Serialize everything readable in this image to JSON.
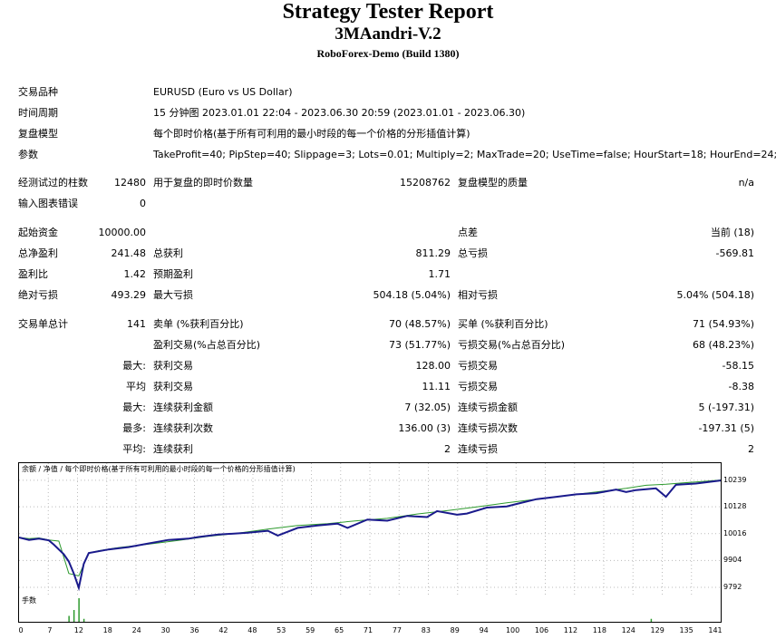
{
  "header": {
    "title": "Strategy Tester Report",
    "expert": "3MAandri-V.2",
    "server": "RoboForex-Demo (Build 1380)"
  },
  "info": [
    {
      "label": "交易品种",
      "value": "EURUSD (Euro vs US Dollar)"
    },
    {
      "label": "时间周期",
      "value": "15 分钟图 2023.01.01 22:04 - 2023.06.30 20:59 (2023.01.01 - 2023.06.30)"
    },
    {
      "label": "复盘模型",
      "value": "每个即时价格(基于所有可利用的最小时段的每一个价格的分形插值计算)"
    },
    {
      "label": "参数",
      "value": "TakeProfit=40; PipStep=40; Slippage=3; Lots=0.01; Multiply=2; MaxTrade=20; UseTime=false; HourStart=18; HourEnd=24;"
    }
  ],
  "bars": {
    "label": "经测试过的柱数",
    "value": "12480",
    "ticks_label": "用于复盘的即时价数量",
    "ticks_value": "15208762",
    "quality_label": "复盘模型的质量",
    "quality_value": "n/a",
    "errors_label": "输入图表错误",
    "errors_value": "0"
  },
  "money": {
    "deposit_label": "起始资金",
    "deposit": "10000.00",
    "spread_label": "点差",
    "spread": "当前 (18)",
    "net_label": "总净盈利",
    "net": "241.48",
    "gross_profit_label": "总获利",
    "gross_profit": "811.29",
    "gross_loss_label": "总亏损",
    "gross_loss": "-569.81",
    "pf_label": "盈利比",
    "pf": "1.42",
    "payoff_label": "预期盈利",
    "payoff": "1.71",
    "abs_dd_label": "绝对亏损",
    "abs_dd": "493.29",
    "max_dd_label": "最大亏损",
    "max_dd": "504.18 (5.04%)",
    "rel_dd_label": "相对亏损",
    "rel_dd": "5.04% (504.18)"
  },
  "trades": {
    "total_label": "交易单总计",
    "total": "141",
    "short_label": "卖单 (%获利百分比)",
    "short": "70 (48.57%)",
    "long_label": "买单 (%获利百分比)",
    "long": "71 (54.93%)",
    "profit_trades_label": "盈利交易(%占总百分比)",
    "profit_trades": "73 (51.77%)",
    "loss_trades_label": "亏损交易(%占总百分比)",
    "loss_trades": "68 (48.23%)",
    "max_prefix": "最大:",
    "largest_profit_label": "获利交易",
    "largest_profit": "128.00",
    "largest_loss_label": "亏损交易",
    "largest_loss": "-58.15",
    "avg_prefix": "平均",
    "avg_profit_label": "获利交易",
    "avg_profit": "11.11",
    "avg_loss_label": "亏损交易",
    "avg_loss": "-8.38",
    "max_prefix2": "最大:",
    "max_cons_wins_label": "连续获利金额",
    "max_cons_wins": "7 (32.05)",
    "max_cons_losses_label": "连续亏损金额",
    "max_cons_losses": "5 (-197.31)",
    "most_prefix": "最多:",
    "max_cons_profit_label": "连续获利次数",
    "max_cons_profit": "136.00 (3)",
    "max_cons_loss_label": "连续亏损次数",
    "max_cons_loss": "-197.31 (5)",
    "avg_prefix2": "平均:",
    "avg_cons_wins_label": "连续获利",
    "avg_cons_wins": "2",
    "avg_cons_losses_label": "连续亏损",
    "avg_cons_losses": "2"
  },
  "chart_caption": "余额 / 净值 / 每个即时价格(基于所有可利用的最小时段的每一个价格的分形插值计算)",
  "volume_caption": "手数",
  "colors": {
    "balance": "#1a1a8c",
    "equity": "#2e9a2e",
    "volume": "#2e9a2e"
  },
  "chart_data": {
    "type": "line",
    "ylim": [
      9792,
      10280
    ],
    "y_ticks": [
      "10239",
      "10128",
      "10016",
      "9904",
      "9792"
    ],
    "x_ticks": [
      "0",
      "7",
      "12",
      "18",
      "24",
      "30",
      "36",
      "42",
      "48",
      "53",
      "59",
      "65",
      "71",
      "77",
      "83",
      "89",
      "94",
      "100",
      "106",
      "112",
      "118",
      "124",
      "129",
      "135",
      "141"
    ],
    "series": [
      {
        "name": "余额",
        "x": [
          0,
          2,
          4,
          6,
          8,
          10,
          12,
          14,
          16,
          20,
          26,
          32,
          38,
          44,
          50,
          56,
          62,
          68,
          74,
          80,
          86,
          92,
          98,
          104,
          110,
          116,
          122,
          126,
          130,
          136,
          141
        ],
        "values": [
          10000,
          9995,
          9998,
          9990,
          9985,
          9850,
          9840,
          9935,
          9945,
          9958,
          9972,
          9988,
          10005,
          10018,
          10035,
          10050,
          10058,
          10070,
          10080,
          10098,
          10112,
          10128,
          10145,
          10160,
          10175,
          10190,
          10205,
          10218,
          10222,
          10232,
          10240
        ]
      },
      {
        "name": "净值",
        "x": [
          0,
          2,
          4,
          6,
          7,
          9,
          10,
          11,
          12,
          13,
          14,
          18,
          22,
          26,
          30,
          34,
          36,
          40,
          46,
          50,
          52,
          56,
          60,
          64,
          66,
          70,
          74,
          78,
          82,
          84,
          88,
          90,
          94,
          98,
          100,
          104,
          108,
          112,
          116,
          120,
          122,
          124,
          128,
          130,
          132,
          136,
          141
        ],
        "values": [
          10000,
          9990,
          9995,
          9988,
          9970,
          9930,
          9900,
          9850,
          9790,
          9890,
          9935,
          9950,
          9960,
          9975,
          9990,
          9995,
          10002,
          10012,
          10020,
          10028,
          10008,
          10040,
          10050,
          10058,
          10040,
          10075,
          10070,
          10090,
          10085,
          10110,
          10095,
          10100,
          10125,
          10130,
          10140,
          10160,
          10170,
          10180,
          10185,
          10200,
          10190,
          10198,
          10205,
          10170,
          10220,
          10225,
          10238
        ]
      }
    ],
    "volume": {
      "x": [
        10,
        11,
        12,
        13,
        127
      ],
      "values": [
        0.04,
        0.08,
        0.16,
        0.02,
        0.02
      ]
    }
  }
}
